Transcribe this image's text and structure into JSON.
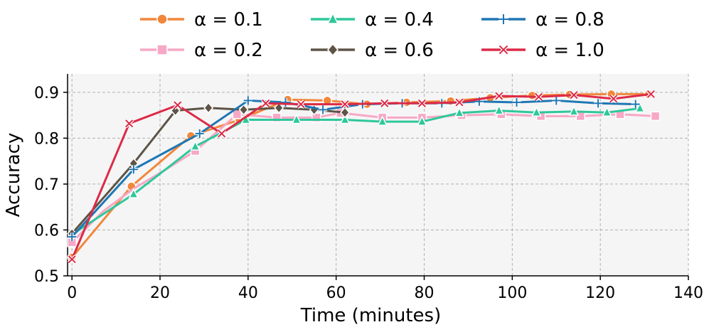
{
  "chart_data": {
    "type": "line",
    "title": "",
    "xlabel": "Time (minutes)",
    "ylabel": "Accuracy",
    "xlim": [
      -1,
      140
    ],
    "ylim": [
      0.5,
      0.94
    ],
    "xticks": [
      0,
      20,
      40,
      60,
      80,
      100,
      120,
      140
    ],
    "yticks": [
      0.5,
      0.6,
      0.7,
      0.8,
      0.9
    ],
    "grid": true,
    "legend_position": "top-center",
    "series": [
      {
        "name": "α = 0.1",
        "color": "#f2873b",
        "marker": "circle",
        "x": [
          0,
          13.5,
          27,
          38,
          49,
          58,
          67,
          76,
          86,
          95,
          104.5,
          113,
          122.5,
          131
        ],
        "y": [
          0.54,
          0.695,
          0.805,
          0.84,
          0.884,
          0.882,
          0.874,
          0.878,
          0.881,
          0.888,
          0.893,
          0.895,
          0.896,
          0.896
        ]
      },
      {
        "name": "α = 0.2",
        "color": "#f7a8c6",
        "marker": "square",
        "x": [
          0,
          7,
          14,
          21,
          28,
          37.5,
          46.5,
          55.5,
          61,
          70.5,
          79.5,
          88.5,
          97.5,
          106.5,
          115.5,
          124.5,
          132.5
        ],
        "y": [
          0.573,
          0.64,
          0.69,
          0.73,
          0.772,
          0.852,
          0.845,
          0.845,
          0.855,
          0.845,
          0.845,
          0.85,
          0.852,
          0.848,
          0.848,
          0.852,
          0.848
        ],
        "markers_at": [
          0,
          4,
          5,
          6,
          7,
          8,
          9,
          10,
          11,
          12,
          13,
          14,
          15,
          16
        ]
      },
      {
        "name": "α = 0.4",
        "color": "#2ec89a",
        "marker": "triangle",
        "x": [
          0,
          14,
          28,
          39.5,
          51,
          62,
          70.5,
          79.5,
          88,
          97,
          105.5,
          114,
          121.5,
          129
        ],
        "y": [
          0.59,
          0.678,
          0.782,
          0.84,
          0.84,
          0.84,
          0.836,
          0.836,
          0.855,
          0.86,
          0.856,
          0.858,
          0.856,
          0.865
        ]
      },
      {
        "name": "α = 0.6",
        "color": "#5e5446",
        "marker": "diamond",
        "x": [
          0,
          14,
          23.5,
          31,
          39,
          47,
          55,
          62
        ],
        "y": [
          0.592,
          0.745,
          0.86,
          0.866,
          0.862,
          0.866,
          0.862,
          0.856
        ]
      },
      {
        "name": "α = 0.8",
        "color": "#1f77b4",
        "marker": "plus",
        "x": [
          0,
          14,
          29,
          40,
          48.5,
          57,
          66,
          75,
          84,
          92.5,
          101,
          110,
          119.5,
          128
        ],
        "y": [
          0.585,
          0.732,
          0.81,
          0.882,
          0.878,
          0.862,
          0.874,
          0.876,
          0.876,
          0.88,
          0.878,
          0.882,
          0.876,
          0.874
        ]
      },
      {
        "name": "α = 1.0",
        "color": "#dc2a47",
        "marker": "x",
        "x": [
          0,
          13,
          24,
          34,
          44,
          52,
          62,
          71,
          79.5,
          88,
          97,
          106,
          114,
          123,
          131.5
        ],
        "y": [
          0.536,
          0.832,
          0.872,
          0.81,
          0.876,
          0.874,
          0.874,
          0.876,
          0.876,
          0.878,
          0.892,
          0.89,
          0.894,
          0.886,
          0.896
        ]
      }
    ]
  }
}
